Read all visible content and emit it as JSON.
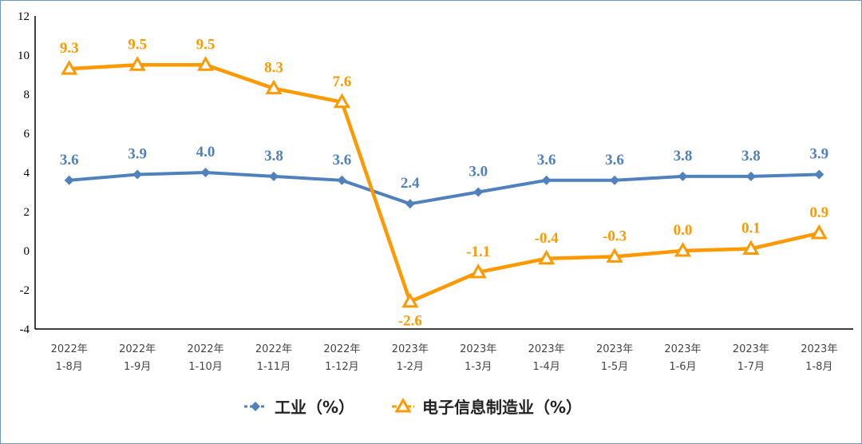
{
  "chart_data": {
    "type": "line",
    "categories": [
      [
        "2022年",
        "1-8月"
      ],
      [
        "2022年",
        "1-9月"
      ],
      [
        "2022年",
        "1-10月"
      ],
      [
        "2022年",
        "1-11月"
      ],
      [
        "2022年",
        "1-12月"
      ],
      [
        "2023年",
        "1-2月"
      ],
      [
        "2023年",
        "1-3月"
      ],
      [
        "2023年",
        "1-4月"
      ],
      [
        "2023年",
        "1-5月"
      ],
      [
        "2023年",
        "1-6月"
      ],
      [
        "2023年",
        "1-7月"
      ],
      [
        "2023年",
        "1-8月"
      ]
    ],
    "series": [
      {
        "name": "工业（%）",
        "color": "#4f81bd",
        "marker": "diamond",
        "values": [
          3.6,
          3.9,
          4.0,
          3.8,
          3.6,
          2.4,
          3.0,
          3.6,
          3.6,
          3.8,
          3.8,
          3.9
        ]
      },
      {
        "name": "电子信息制造业（%）",
        "color": "#ff9900",
        "marker": "triangle",
        "values": [
          9.3,
          9.5,
          9.5,
          8.3,
          7.6,
          -2.6,
          -1.1,
          -0.4,
          -0.3,
          0.0,
          0.1,
          0.9
        ]
      }
    ],
    "ylim": [
      -4,
      12
    ],
    "yticks": [
      -4,
      -2,
      0,
      2,
      4,
      6,
      8,
      10,
      12
    ],
    "grid": false,
    "legend": "bottom",
    "title": "",
    "xlabel": "",
    "ylabel": ""
  }
}
